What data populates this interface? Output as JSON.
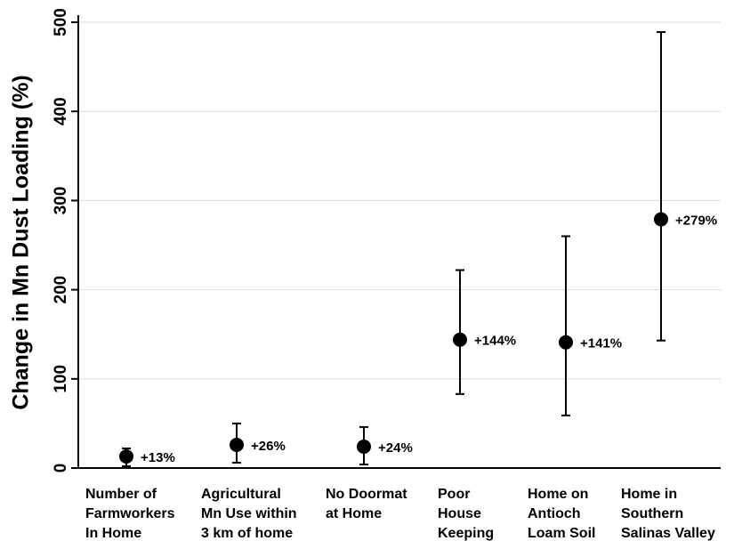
{
  "chart_data": {
    "type": "scatter",
    "title": "",
    "xlabel": "",
    "ylabel": "Change in Mn Dust Loading (%)",
    "ylim": [
      0,
      500
    ],
    "yticks": [
      "0",
      "100",
      "200",
      "300",
      "400",
      "500"
    ],
    "grid": true,
    "categories": [
      "Number of\nFarmworkers\nIn Home",
      "Agricultural\nMn Use within\n3 km of home",
      "No Doormat\nat Home",
      "Poor\nHouse\nKeeping",
      "Home on\nAntioch\nLoam Soil",
      "Home in\nSouthern\nSalinas Valley"
    ],
    "points": [
      {
        "value": 13,
        "lower": 2,
        "upper": 22,
        "label": "+13%"
      },
      {
        "value": 26,
        "lower": 6,
        "upper": 50,
        "label": "+26%"
      },
      {
        "value": 24,
        "lower": 4,
        "upper": 46,
        "label": "+24%"
      },
      {
        "value": 144,
        "lower": 83,
        "upper": 222,
        "label": "+144%"
      },
      {
        "value": 141,
        "lower": 59,
        "upper": 260,
        "label": "+141%"
      },
      {
        "value": 279,
        "lower": 143,
        "upper": 489,
        "label": "+279%"
      }
    ]
  }
}
